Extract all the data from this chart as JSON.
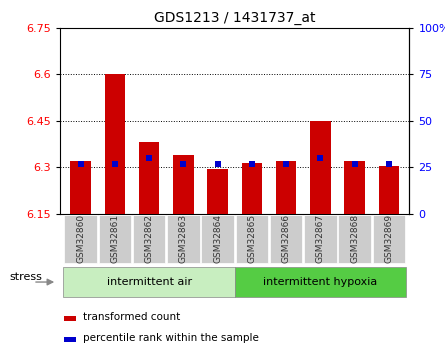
{
  "title": "GDS1213 / 1431737_at",
  "samples": [
    "GSM32860",
    "GSM32861",
    "GSM32862",
    "GSM32863",
    "GSM32864",
    "GSM32865",
    "GSM32866",
    "GSM32867",
    "GSM32868",
    "GSM32869"
  ],
  "red_values": [
    6.32,
    6.6,
    6.38,
    6.34,
    6.295,
    6.315,
    6.32,
    6.45,
    6.32,
    6.305
  ],
  "blue_pct": [
    27,
    27,
    30,
    27,
    27,
    27,
    27,
    30,
    27,
    27
  ],
  "baseline": 6.15,
  "ylim": [
    6.15,
    6.75
  ],
  "yticks_left": [
    6.15,
    6.3,
    6.45,
    6.6,
    6.75
  ],
  "yticks_right": [
    0,
    25,
    50,
    75,
    100
  ],
  "yticks_right_vals": [
    6.15,
    6.3,
    6.45,
    6.6,
    6.75
  ],
  "group1_label": "intermittent air",
  "group2_label": "intermittent hypoxia",
  "stress_label": "stress",
  "legend1": "transformed count",
  "legend2": "percentile rank within the sample",
  "bar_color": "#cc0000",
  "blue_color": "#0000cc",
  "group1_bg": "#c8eec0",
  "group2_bg": "#55cc44",
  "xtick_bg": "#cccccc",
  "bar_width": 0.6,
  "grid_ticks": [
    6.3,
    6.45,
    6.6
  ]
}
